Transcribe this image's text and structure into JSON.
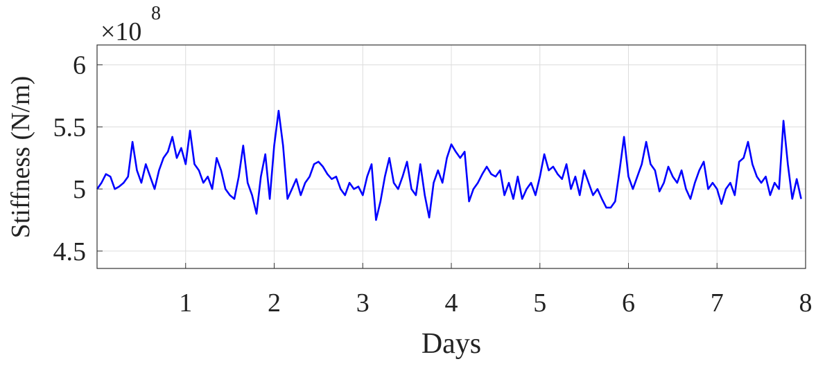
{
  "chart_data": {
    "type": "line",
    "x_label": "Days",
    "y_label": "Stiffness (N/m)",
    "y_scale_label": {
      "base": "×10",
      "exponent": "8"
    },
    "xlim": [
      0,
      8
    ],
    "xticks": [
      1,
      2,
      3,
      4,
      5,
      6,
      7,
      8
    ],
    "ylim": [
      4.36,
      6.16
    ],
    "yticks": [
      4.5,
      5,
      5.5,
      6
    ],
    "grid": true,
    "x": [
      0,
      0.05,
      0.1,
      0.15,
      0.2,
      0.25,
      0.3,
      0.35,
      0.4,
      0.45,
      0.5,
      0.55,
      0.6,
      0.65,
      0.7,
      0.75,
      0.8,
      0.85,
      0.9,
      0.95,
      1,
      1.05,
      1.1,
      1.15,
      1.2,
      1.25,
      1.3,
      1.35,
      1.4,
      1.45,
      1.5,
      1.55,
      1.6,
      1.65,
      1.7,
      1.75,
      1.8,
      1.85,
      1.9,
      1.95,
      2,
      2.05,
      2.1,
      2.15,
      2.2,
      2.25,
      2.3,
      2.35,
      2.4,
      2.45,
      2.5,
      2.55,
      2.6,
      2.65,
      2.7,
      2.75,
      2.8,
      2.85,
      2.9,
      2.95,
      3,
      3.05,
      3.1,
      3.15,
      3.2,
      3.25,
      3.3,
      3.35,
      3.4,
      3.45,
      3.5,
      3.55,
      3.6,
      3.65,
      3.7,
      3.75,
      3.8,
      3.85,
      3.9,
      3.95,
      4,
      4.05,
      4.1,
      4.15,
      4.2,
      4.25,
      4.3,
      4.35,
      4.4,
      4.45,
      4.5,
      4.55,
      4.6,
      4.65,
      4.7,
      4.75,
      4.8,
      4.85,
      4.9,
      4.95,
      5,
      5.05,
      5.1,
      5.15,
      5.2,
      5.25,
      5.3,
      5.35,
      5.4,
      5.45,
      5.5,
      5.55,
      5.6,
      5.65,
      5.7,
      5.75,
      5.8,
      5.85,
      5.9,
      5.95,
      6,
      6.05,
      6.1,
      6.15,
      6.2,
      6.25,
      6.3,
      6.35,
      6.4,
      6.45,
      6.5,
      6.55,
      6.6,
      6.65,
      6.7,
      6.75,
      6.8,
      6.85,
      6.9,
      6.95,
      7,
      7.05,
      7.1,
      7.15,
      7.2,
      7.25,
      7.3,
      7.35,
      7.4,
      7.45,
      7.5,
      7.55,
      7.6,
      7.65,
      7.7,
      7.75,
      7.8,
      7.85,
      7.9,
      7.95
    ],
    "series": [
      {
        "color": "#0000ff",
        "values": [
          5.0,
          5.05,
          5.12,
          5.1,
          5.0,
          5.02,
          5.05,
          5.1,
          5.38,
          5.15,
          5.05,
          5.2,
          5.1,
          5.0,
          5.15,
          5.25,
          5.3,
          5.42,
          5.25,
          5.33,
          5.2,
          5.47,
          5.2,
          5.15,
          5.05,
          5.1,
          5.0,
          5.25,
          5.15,
          5.0,
          4.95,
          4.92,
          5.1,
          5.35,
          5.05,
          4.95,
          4.8,
          5.1,
          5.28,
          4.92,
          5.35,
          5.63,
          5.35,
          4.92,
          5.0,
          5.08,
          4.95,
          5.05,
          5.1,
          5.2,
          5.22,
          5.18,
          5.12,
          5.08,
          5.1,
          5.0,
          4.95,
          5.05,
          5.0,
          5.02,
          4.95,
          5.1,
          5.2,
          4.75,
          4.9,
          5.1,
          5.25,
          5.05,
          5.0,
          5.1,
          5.22,
          5.0,
          4.95,
          5.2,
          4.95,
          4.77,
          5.05,
          5.15,
          5.05,
          5.25,
          5.36,
          5.3,
          5.25,
          5.3,
          4.9,
          5.0,
          5.05,
          5.12,
          5.18,
          5.12,
          5.1,
          5.15,
          4.95,
          5.05,
          4.92,
          5.1,
          4.92,
          5.0,
          5.05,
          4.95,
          5.1,
          5.28,
          5.15,
          5.18,
          5.12,
          5.08,
          5.2,
          5.0,
          5.1,
          4.95,
          5.15,
          5.05,
          4.95,
          5.0,
          4.92,
          4.85,
          4.85,
          4.9,
          5.15,
          5.42,
          5.1,
          5.0,
          5.1,
          5.2,
          5.38,
          5.2,
          5.15,
          4.98,
          5.05,
          5.18,
          5.1,
          5.05,
          5.15,
          5.0,
          4.92,
          5.05,
          5.15,
          5.22,
          5.0,
          5.05,
          5.0,
          4.88,
          5.0,
          5.05,
          4.95,
          5.22,
          5.25,
          5.38,
          5.2,
          5.1,
          5.05,
          5.1,
          4.95,
          5.05,
          5.0,
          5.55,
          5.2,
          4.92,
          5.08,
          4.92
        ]
      }
    ]
  }
}
